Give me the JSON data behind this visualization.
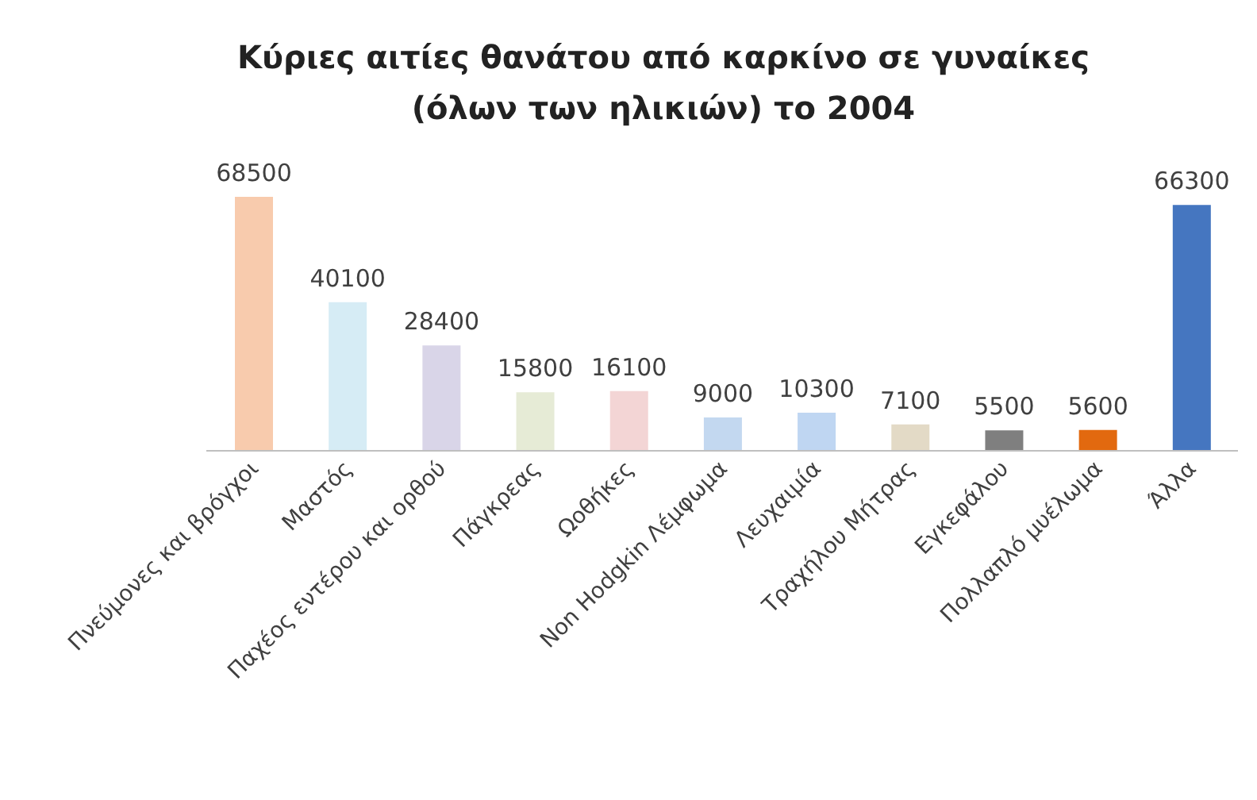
{
  "chart_data": {
    "type": "bar",
    "title": "Κύριες αιτίες θανάτου από καρκίνο σε γυναίκες (όλων των ηλικιών) το 2004",
    "categories": [
      "Πνεύμονες και βρόγχοι",
      "Μαστός",
      "Παχέος εντέρου και ορθού",
      "Πάγκρεας",
      "Ωοθήκες",
      "Non Hodgkin Λέμφωμα",
      "Λευχαιμία",
      "Τραχήλου Μήτρας",
      "Εγκεφάλου",
      "Πολλαπλό μυέλωμα",
      "Άλλα"
    ],
    "values": [
      68500,
      40100,
      28400,
      15800,
      16100,
      9000,
      10300,
      7100,
      5500,
      5600,
      66300
    ],
    "colors": [
      "#f8cbad",
      "#d6ecf5",
      "#d9d5e8",
      "#e6ebd6",
      "#f3d5d5",
      "#c3d8f0",
      "#bfd6f2",
      "#e3dac6",
      "#7f7f7f",
      "#e2690f",
      "#4576c0"
    ],
    "data_labels": true
  }
}
